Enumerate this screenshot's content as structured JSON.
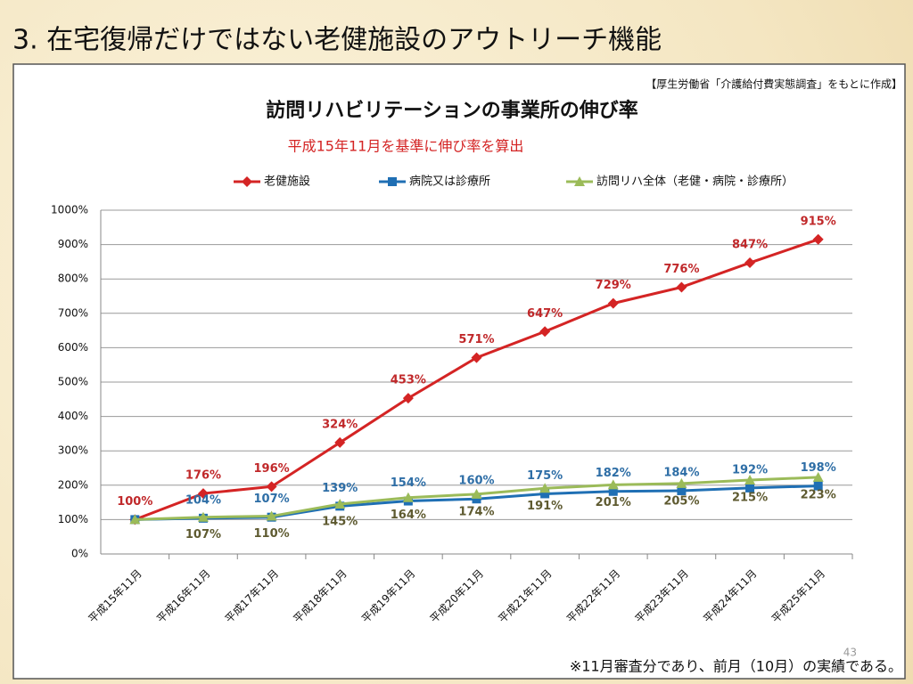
{
  "slide": {
    "title": "3. 在宅復帰だけではない老健施設のアウトリーチ機能",
    "source": "【厚生労働省「介護給付費実態調査」をもとに作成】",
    "footnote": "※11月審査分であり、前月（10月）の実績である。",
    "page_number": "43"
  },
  "chart_data": {
    "type": "line",
    "title": "訪問リハビリテーションの事業所の伸び率",
    "subtitle": "平成15年11月を基準に伸び率を算出",
    "categories": [
      "平成15年11月",
      "平成16年11月",
      "平成17年11月",
      "平成18年11月",
      "平成19年11月",
      "平成20年11月",
      "平成21年11月",
      "平成22年11月",
      "平成23年11月",
      "平成24年11月",
      "平成25年11月"
    ],
    "series": [
      {
        "name": "老健施設",
        "color": "#d42424",
        "label_color": "#c0282a",
        "marker": "diamond",
        "label_side": "above",
        "values": [
          100,
          176,
          196,
          324,
          453,
          571,
          647,
          729,
          776,
          847,
          915
        ],
        "value_labels": [
          "100%",
          "176%",
          "196%",
          "324%",
          "453%",
          "571%",
          "647%",
          "729%",
          "776%",
          "847%",
          "915%"
        ]
      },
      {
        "name": "病院又は診療所",
        "color": "#1f6fb4",
        "label_color": "#2e6ea6",
        "marker": "square",
        "label_side": "above",
        "values": [
          100,
          104,
          107,
          139,
          154,
          160,
          175,
          182,
          184,
          192,
          198
        ],
        "value_labels": [
          null,
          "104%",
          "107%",
          "139%",
          "154%",
          "160%",
          "175%",
          "182%",
          "184%",
          "192%",
          "198%"
        ]
      },
      {
        "name": "訪問リハ全体（老健・病院・診療所）",
        "color": "#9bbb59",
        "label_color": "#5e5a30",
        "marker": "triangle",
        "label_side": "below",
        "values": [
          100,
          107,
          110,
          145,
          164,
          174,
          191,
          201,
          205,
          215,
          223
        ],
        "value_labels": [
          null,
          "107%",
          "110%",
          "145%",
          "164%",
          "174%",
          "191%",
          "201%",
          "205%",
          "215%",
          "223%"
        ]
      }
    ],
    "ylim": [
      0,
      1000
    ],
    "yticks": [
      {
        "value": 0,
        "label": "0%"
      },
      {
        "value": 100,
        "label": "100%"
      },
      {
        "value": 200,
        "label": "200%"
      },
      {
        "value": 300,
        "label": "300%"
      },
      {
        "value": 400,
        "label": "400%"
      },
      {
        "value": 500,
        "label": "500%"
      },
      {
        "value": 600,
        "label": "600%"
      },
      {
        "value": 700,
        "label": "700%"
      },
      {
        "value": 800,
        "label": "800%"
      },
      {
        "value": 900,
        "label": "900%"
      },
      {
        "value": 1000,
        "label": "1000%"
      }
    ],
    "grid": true
  }
}
